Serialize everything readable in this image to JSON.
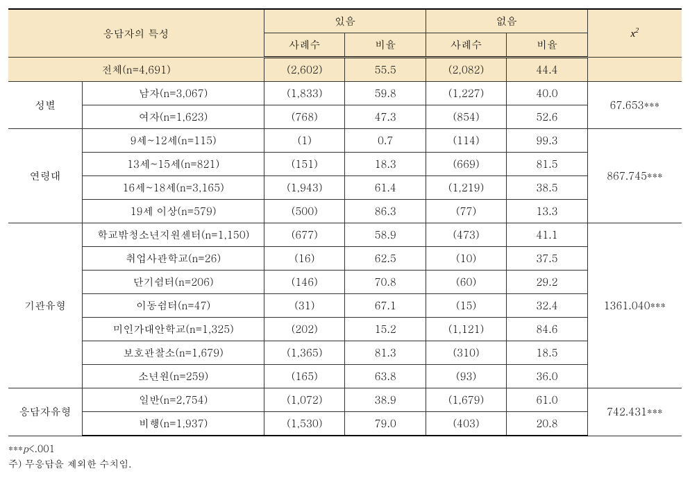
{
  "headers": {
    "respondent_char": "응답자의 특성",
    "yes": "있음",
    "no": "없음",
    "cases": "사례수",
    "ratio": "비율",
    "chi2": "x",
    "chi2_sup": "2"
  },
  "total": {
    "label": "전체(n=4,691)",
    "yes_cases": "(2,602)",
    "yes_ratio": "55.5",
    "no_cases": "(2,082)",
    "no_ratio": "44.4",
    "chi2": ""
  },
  "groups": [
    {
      "label": "성별",
      "chi2": "67.653***",
      "rows": [
        {
          "label": "남자(n=3,067)",
          "yc": "(1,833)",
          "yr": "59.8",
          "nc": "(1,227)",
          "nr": "40.0"
        },
        {
          "label": "여자(n=1,623)",
          "yc": "(768)",
          "yr": "47.3",
          "nc": "(854)",
          "nr": "52.6"
        }
      ]
    },
    {
      "label": "연령대",
      "chi2": "867.745***",
      "rows": [
        {
          "label": "9세~12세(n=115)",
          "yc": "(1)",
          "yr": "0.7",
          "nc": "(114)",
          "nr": "99.3"
        },
        {
          "label": "13세~15세(n=821)",
          "yc": "(151)",
          "yr": "18.3",
          "nc": "(669)",
          "nr": "81.5"
        },
        {
          "label": "16세~18세(n=3,165)",
          "yc": "(1,943)",
          "yr": "61.4",
          "nc": "(1,219)",
          "nr": "38.5"
        },
        {
          "label": "19세 이상(n=579)",
          "yc": "(500)",
          "yr": "86.3",
          "nc": "(77)",
          "nr": "13.3"
        }
      ]
    },
    {
      "label": "기관유형",
      "chi2": "1361.040***",
      "rows": [
        {
          "label": "학교밖청소년지원센터(n=1,150)",
          "yc": "(677)",
          "yr": "58.9",
          "nc": "(473)",
          "nr": "41.1"
        },
        {
          "label": "취업사관학교(n=26)",
          "yc": "(16)",
          "yr": "62.5",
          "nc": "(10)",
          "nr": "37.5"
        },
        {
          "label": "단기쉼터(n=206)",
          "yc": "(146)",
          "yr": "70.8",
          "nc": "(60)",
          "nr": "29.2"
        },
        {
          "label": "이동쉼터(n=47)",
          "yc": "(31)",
          "yr": "67.1",
          "nc": "(15)",
          "nr": "32.4"
        },
        {
          "label": "미인가대안학교(n=1,325)",
          "yc": "(202)",
          "yr": "15.2",
          "nc": "(1,121)",
          "nr": "84.6"
        },
        {
          "label": "보호관찰소(n=1,679)",
          "yc": "(1,365)",
          "yr": "81.3",
          "nc": "(310)",
          "nr": "18.5"
        },
        {
          "label": "소년원(n=259)",
          "yc": "(165)",
          "yr": "63.8",
          "nc": "(93)",
          "nr": "36.0"
        }
      ]
    },
    {
      "label": "응답자유형",
      "chi2": "742.431***",
      "rows": [
        {
          "label": "일반(n=2,754)",
          "yc": "(1,072)",
          "yr": "38.9",
          "nc": "(1,679)",
          "nr": "61.0"
        },
        {
          "label": "비행(n=1,937)",
          "yc": "(1,530)",
          "yr": "79.0",
          "nc": "(403)",
          "nr": "20.8"
        }
      ]
    }
  ],
  "footnotes": {
    "sig": "***",
    "p_label": "p",
    "p_value": "<.001",
    "note": "주) 무응답을 제외한 수치임."
  },
  "style": {
    "header_bg": "#f7e7c4",
    "border_color": "#333333",
    "heavy_border": "#000000",
    "font_size": 15,
    "footnote_font_size": 14
  }
}
